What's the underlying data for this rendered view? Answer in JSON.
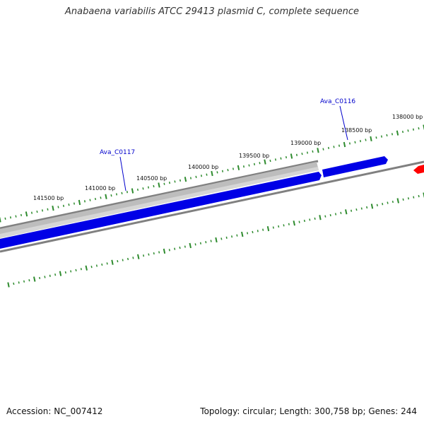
{
  "title": "Anabaena variabilis ATCC 29413 plasmid C, complete sequence",
  "footer": {
    "accession": "Accession: NC_007412",
    "summary": "Topology: circular; Length: 300,758 bp; Genes: 244"
  },
  "colors": {
    "forward_gene": "#0000e6",
    "reverse_gene": "#bdbdbd",
    "other_feature": "#ff0000",
    "backbone": "#808080",
    "tick": "#2e8b2e",
    "gene_label": "#0000cc"
  },
  "ruler": {
    "ticks": [
      {
        "bp": 141500,
        "label": "141500 bp"
      },
      {
        "bp": 141000,
        "label": "141000 bp"
      },
      {
        "bp": 140500,
        "label": "140500 bp"
      },
      {
        "bp": 140000,
        "label": "140000 bp"
      },
      {
        "bp": 139500,
        "label": "139500 bp"
      },
      {
        "bp": 139000,
        "label": "139000 bp"
      },
      {
        "bp": 138500,
        "label": "138500 bp"
      },
      {
        "bp": 138000,
        "label": "138000 bp"
      }
    ]
  },
  "genes": [
    {
      "name": "Ava_C0117"
    },
    {
      "name": "Ava_C0116"
    }
  ]
}
